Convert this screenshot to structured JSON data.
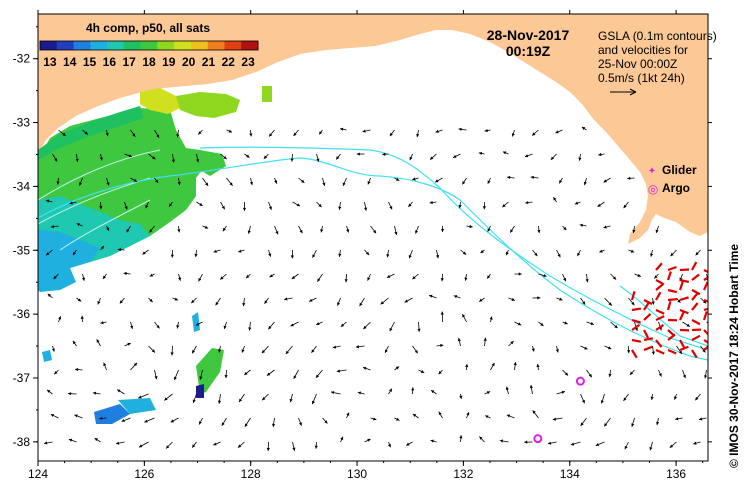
{
  "colorbar": {
    "title": "4h comp, p50, all sats",
    "ticks": [
      "13",
      "14",
      "15",
      "16",
      "17",
      "18",
      "19",
      "20",
      "21",
      "22",
      "23"
    ],
    "vmin": 12.5,
    "vmax": 23.5,
    "colors": [
      "#1b1b8f",
      "#1f3fbf",
      "#1f7fe0",
      "#1fb0e0",
      "#1fc8b0",
      "#1fc060",
      "#3fc83f",
      "#8fd81f",
      "#d0e01f",
      "#f0c01f",
      "#f0801f",
      "#e04010",
      "#b01010"
    ]
  },
  "date": {
    "line1": "28-Nov-2017",
    "line2": "00:19Z"
  },
  "gsla_note": {
    "lines": [
      "GSLA (0.1m contours)",
      "and velocities for",
      "25-Nov 00:00Z",
      "0.5m/s (1kt 24h)"
    ]
  },
  "legend": {
    "glider": {
      "symbol": "✦",
      "label": "Glider",
      "color": "#e020e0"
    },
    "argo": {
      "symbol": "◎",
      "label": "Argo",
      "color": "#e020e0"
    }
  },
  "credit": "©  IMOS 30-Nov-2017 18:24 Hobart Time",
  "axes": {
    "x_ticks": [
      "124",
      "126",
      "128",
      "130",
      "132",
      "134",
      "136"
    ],
    "x_values": [
      124,
      126,
      128,
      130,
      132,
      134,
      136
    ],
    "y_ticks": [
      "-32",
      "-33",
      "-34",
      "-35",
      "-36",
      "-37",
      "-38"
    ],
    "y_values": [
      -32,
      -33,
      -34,
      -35,
      -36,
      -37,
      -38
    ],
    "lon_range": [
      124,
      136.6
    ],
    "lat_range": [
      -38.3,
      -31.3
    ]
  },
  "colors": {
    "land": "#fcc896",
    "ocean": "#ffffff",
    "contour": "#40e0f0",
    "sst_contour": "#c8f0f0",
    "current_arrow": "#000000",
    "glider_vector": "#e00000"
  },
  "argo_floats": [
    {
      "lon": 134.2,
      "lat": -37.05
    },
    {
      "lon": 133.4,
      "lat": -37.95
    }
  ]
}
